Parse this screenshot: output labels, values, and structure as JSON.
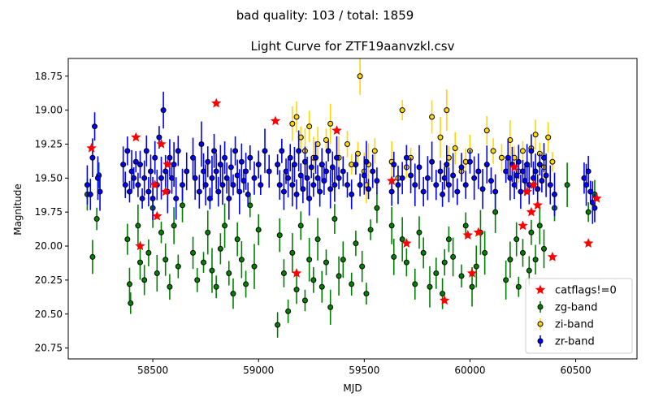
{
  "chart_data": {
    "type": "scatter",
    "suptitle": "bad quality: 103 / total: 1859",
    "title": "Light Curve for ZTF19aanvzkl.csv",
    "xlabel": "MJD",
    "ylabel": "Magnitude",
    "xlim": [
      58100,
      60790
    ],
    "ylim": [
      20.83,
      18.62
    ],
    "y_inverted": true,
    "xticks": [
      "58500",
      "59000",
      "59500",
      "60000",
      "60500"
    ],
    "yticks": [
      "18.75",
      "19.00",
      "19.25",
      "19.50",
      "19.75",
      "20.00",
      "20.25",
      "20.50",
      "20.75"
    ],
    "grid": false,
    "legend_position": "lower-right",
    "colors": {
      "zg": "#008000",
      "zi": "#ffd700",
      "zr": "#0000ff",
      "bad": "#ff0000"
    },
    "series": [
      {
        "name": "zg-band",
        "color": "#008000",
        "marker": "circle-errorbar",
        "x": [
          58190,
          58215,
          58235,
          58245,
          58380,
          58390,
          58395,
          58430,
          58440,
          58460,
          58480,
          58500,
          58520,
          58540,
          58560,
          58580,
          58600,
          58620,
          58640,
          58690,
          58710,
          58740,
          58760,
          58780,
          58800,
          58820,
          58840,
          58860,
          58880,
          58900,
          58920,
          58940,
          58960,
          58980,
          59000,
          59090,
          59100,
          59120,
          59140,
          59160,
          59180,
          59200,
          59220,
          59240,
          59260,
          59280,
          59300,
          59320,
          59340,
          59360,
          59380,
          59400,
          59440,
          59460,
          59490,
          59510,
          59530,
          59560,
          59630,
          59640,
          59680,
          59700,
          59740,
          59760,
          59780,
          59810,
          59840,
          59870,
          59880,
          59900,
          59920,
          59960,
          59980,
          60010,
          60030,
          60050,
          60070,
          60120,
          60170,
          60190,
          60220,
          60230,
          60250,
          60280,
          60290,
          60310,
          60330,
          60350,
          60400,
          60460,
          60560,
          60590
        ],
        "y": [
          19.62,
          20.08,
          19.8,
          19.48,
          19.95,
          20.28,
          20.42,
          19.85,
          20.12,
          20.25,
          20.05,
          19.72,
          20.2,
          19.9,
          20.1,
          20.3,
          19.85,
          20.15,
          19.7,
          20.05,
          20.25,
          20.12,
          19.9,
          20.18,
          20.3,
          20.02,
          19.85,
          20.2,
          20.35,
          19.95,
          20.1,
          20.28,
          19.7,
          20.15,
          19.88,
          20.58,
          19.92,
          20.2,
          20.48,
          20.05,
          20.32,
          19.85,
          20.4,
          20.1,
          20.25,
          19.95,
          20.3,
          20.12,
          20.45,
          19.8,
          20.22,
          20.1,
          20.28,
          19.98,
          20.15,
          20.35,
          19.88,
          19.72,
          19.85,
          20.08,
          19.95,
          20.12,
          20.28,
          19.9,
          20.05,
          20.3,
          20.2,
          20.35,
          20.12,
          19.95,
          20.08,
          20.22,
          19.85,
          20.3,
          20.15,
          19.9,
          20.05,
          19.75,
          20.25,
          20.1,
          19.95,
          20.3,
          20.05,
          20.18,
          19.9,
          20.1,
          19.85,
          20.02,
          19.72,
          19.55,
          19.75,
          19.62
        ]
      },
      {
        "name": "zi-band",
        "color": "#ffd700",
        "marker": "circle-errorbar",
        "x": [
          59160,
          59180,
          59200,
          59220,
          59240,
          59260,
          59280,
          59300,
          59320,
          59340,
          59380,
          59420,
          59440,
          59470,
          59480,
          59500,
          59510,
          59520,
          59550,
          59630,
          59660,
          59680,
          59700,
          59720,
          59820,
          59860,
          59890,
          59900,
          59930,
          59960,
          59980,
          60000,
          60040,
          60080,
          60110,
          60150,
          60190,
          60210,
          60230,
          60250,
          60270,
          60290,
          60310,
          60330,
          60350,
          60370,
          60390
        ],
        "y": [
          19.1,
          19.05,
          19.2,
          19.3,
          19.12,
          19.35,
          19.25,
          19.4,
          19.22,
          19.1,
          19.35,
          19.25,
          19.4,
          19.32,
          18.75,
          19.45,
          19.55,
          19.4,
          19.3,
          19.38,
          19.5,
          19.0,
          19.42,
          19.35,
          19.05,
          19.2,
          19.0,
          19.35,
          19.28,
          19.45,
          19.38,
          19.3,
          19.45,
          19.15,
          19.3,
          19.35,
          19.22,
          19.35,
          19.45,
          19.3,
          19.4,
          19.28,
          19.18,
          19.32,
          19.42,
          19.2,
          19.38
        ]
      },
      {
        "name": "zr-band",
        "color": "#0000ff",
        "marker": "circle-errorbar",
        "x": [
          58190,
          58205,
          58215,
          58225,
          58240,
          58250,
          58360,
          58370,
          58380,
          58390,
          58400,
          58410,
          58420,
          58430,
          58440,
          58450,
          58460,
          58470,
          58480,
          58490,
          58500,
          58510,
          58520,
          58530,
          58540,
          58550,
          58560,
          58570,
          58580,
          58590,
          58600,
          58610,
          58620,
          58640,
          58660,
          58690,
          58700,
          58720,
          58730,
          58740,
          58750,
          58760,
          58770,
          58780,
          58790,
          58800,
          58810,
          58820,
          58830,
          58840,
          58850,
          58860,
          58870,
          58880,
          58890,
          58900,
          58910,
          58920,
          58930,
          58940,
          58950,
          58960,
          58980,
          59000,
          59010,
          59030,
          59050,
          59090,
          59100,
          59110,
          59120,
          59130,
          59140,
          59150,
          59160,
          59170,
          59180,
          59190,
          59200,
          59210,
          59220,
          59230,
          59240,
          59250,
          59260,
          59270,
          59280,
          59290,
          59300,
          59310,
          59320,
          59330,
          59340,
          59350,
          59360,
          59370,
          59380,
          59400,
          59420,
          59440,
          59460,
          59480,
          59500,
          59510,
          59520,
          59540,
          59560,
          59630,
          59640,
          59660,
          59680,
          59700,
          59720,
          59740,
          59760,
          59780,
          59800,
          59820,
          59840,
          59860,
          59870,
          59880,
          59890,
          59900,
          59920,
          59940,
          59960,
          59980,
          60000,
          60020,
          60040,
          60060,
          60080,
          60100,
          60120,
          60170,
          60180,
          60190,
          60200,
          60210,
          60220,
          60230,
          60240,
          60250,
          60260,
          60270,
          60280,
          60290,
          60300,
          60310,
          60320,
          60330,
          60340,
          60350,
          60360,
          60380,
          60400,
          60540,
          60550,
          60560,
          60570,
          60580,
          60590
        ],
        "y": [
          19.55,
          19.62,
          19.35,
          19.12,
          19.5,
          19.6,
          19.4,
          19.55,
          19.3,
          19.6,
          19.45,
          19.5,
          19.38,
          19.55,
          19.4,
          19.65,
          19.5,
          19.3,
          19.6,
          19.45,
          19.65,
          19.35,
          19.55,
          19.2,
          19.5,
          19.0,
          19.45,
          19.6,
          19.35,
          19.5,
          19.4,
          19.65,
          19.3,
          19.55,
          19.45,
          19.35,
          19.5,
          19.6,
          19.25,
          19.45,
          19.55,
          19.38,
          19.65,
          19.5,
          19.3,
          19.45,
          19.6,
          19.4,
          19.55,
          19.35,
          19.5,
          19.65,
          19.42,
          19.55,
          19.3,
          19.48,
          19.6,
          19.38,
          19.52,
          19.45,
          19.62,
          19.35,
          19.5,
          19.4,
          19.55,
          19.3,
          19.45,
          19.4,
          19.55,
          19.3,
          19.6,
          19.45,
          19.5,
          19.35,
          19.55,
          19.4,
          19.62,
          19.3,
          19.48,
          19.58,
          19.38,
          19.5,
          19.65,
          19.42,
          19.55,
          19.35,
          19.5,
          19.6,
          19.4,
          19.52,
          19.45,
          19.3,
          19.58,
          19.42,
          19.55,
          19.35,
          19.5,
          19.45,
          19.55,
          19.62,
          19.4,
          19.55,
          19.48,
          19.38,
          19.58,
          19.45,
          19.52,
          19.6,
          19.4,
          19.55,
          19.5,
          19.35,
          19.48,
          19.55,
          19.42,
          19.6,
          19.5,
          19.38,
          19.55,
          19.45,
          19.62,
          19.5,
          19.4,
          19.55,
          19.48,
          19.6,
          19.42,
          19.55,
          19.38,
          19.5,
          19.45,
          19.58,
          19.4,
          19.52,
          19.6,
          19.45,
          19.35,
          19.5,
          19.4,
          19.55,
          19.48,
          19.38,
          19.6,
          19.45,
          19.52,
          19.4,
          19.55,
          19.3,
          19.5,
          19.45,
          19.58,
          19.4,
          19.52,
          19.35,
          19.48,
          19.55,
          19.62,
          19.5,
          19.55,
          19.45,
          19.6,
          19.68,
          19.72
        ]
      },
      {
        "name": "catflags!=0",
        "color": "#ff0000",
        "marker": "star",
        "x": [
          58210,
          58420,
          58440,
          58510,
          58520,
          58540,
          58560,
          58570,
          58800,
          59080,
          59180,
          59370,
          59630,
          59700,
          59880,
          59990,
          60010,
          60040,
          60210,
          60250,
          60270,
          60290,
          60300,
          60320,
          60390,
          60560,
          60600
        ],
        "y": [
          19.28,
          19.2,
          20.0,
          19.55,
          19.78,
          19.25,
          19.6,
          19.4,
          18.95,
          19.08,
          20.2,
          19.15,
          19.52,
          19.98,
          20.4,
          19.92,
          20.2,
          19.9,
          19.42,
          19.85,
          19.6,
          19.75,
          19.55,
          19.7,
          20.08,
          19.98,
          19.65
        ]
      }
    ]
  }
}
